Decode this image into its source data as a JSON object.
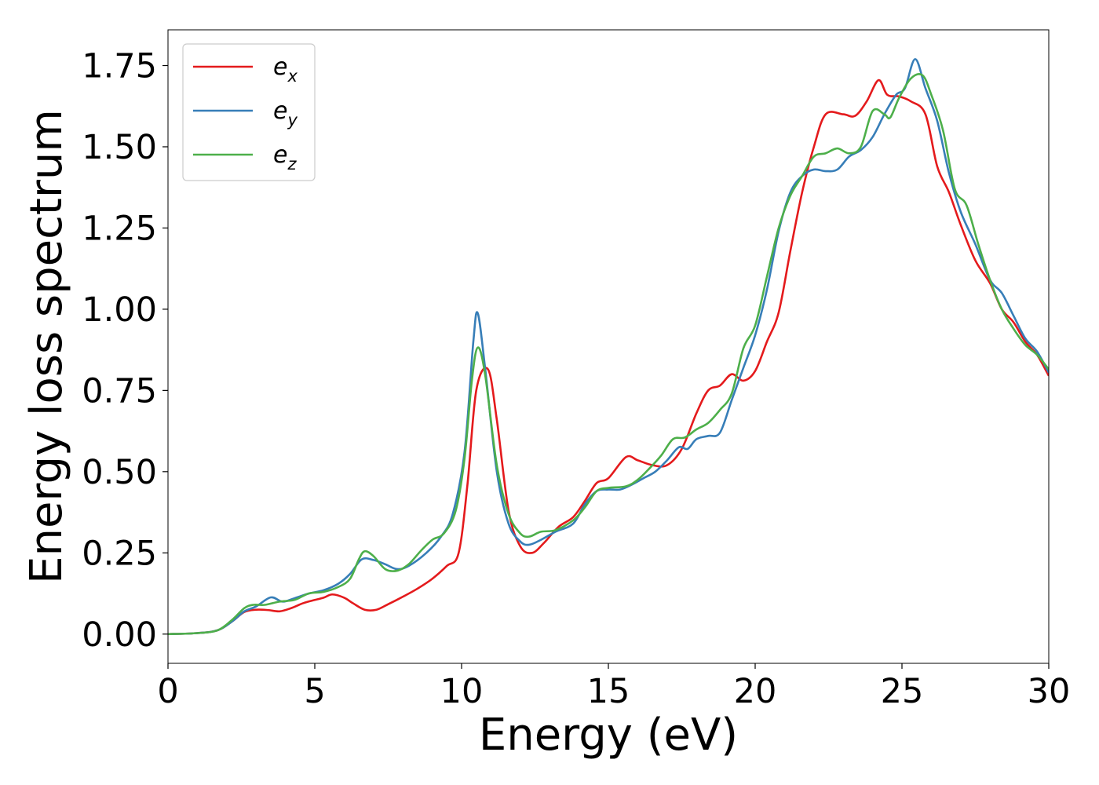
{
  "chart_data": {
    "type": "line",
    "title": "",
    "xlabel": "Energy (eV)",
    "ylabel": "Energy loss spectrum",
    "xlim": [
      0,
      30
    ],
    "ylim": [
      -0.09,
      1.86
    ],
    "xticks": [
      0,
      5,
      10,
      15,
      20,
      25,
      30
    ],
    "xtick_labels": [
      "0",
      "5",
      "10",
      "15",
      "20",
      "25",
      "30"
    ],
    "yticks": [
      0.0,
      0.25,
      0.5,
      0.75,
      1.0,
      1.25,
      1.5,
      1.75
    ],
    "ytick_labels": [
      "0.00",
      "0.25",
      "0.50",
      "0.75",
      "1.00",
      "1.25",
      "1.50",
      "1.75"
    ],
    "grid": false,
    "legend_position": "top-left",
    "series": [
      {
        "name": "e_x",
        "legend_base": "e",
        "legend_sub": "x",
        "color": "#e41a1c",
        "points": [
          [
            0,
            0
          ],
          [
            1,
            0.003
          ],
          [
            1.7,
            0.012
          ],
          [
            2.2,
            0.04
          ],
          [
            2.6,
            0.068
          ],
          [
            3.0,
            0.075
          ],
          [
            3.4,
            0.074
          ],
          [
            3.8,
            0.07
          ],
          [
            4.2,
            0.08
          ],
          [
            4.6,
            0.095
          ],
          [
            5.0,
            0.105
          ],
          [
            5.3,
            0.112
          ],
          [
            5.6,
            0.122
          ],
          [
            6.0,
            0.112
          ],
          [
            6.3,
            0.095
          ],
          [
            6.7,
            0.075
          ],
          [
            7.1,
            0.075
          ],
          [
            7.5,
            0.092
          ],
          [
            8.0,
            0.115
          ],
          [
            8.5,
            0.14
          ],
          [
            9.0,
            0.17
          ],
          [
            9.5,
            0.21
          ],
          [
            9.9,
            0.25
          ],
          [
            10.2,
            0.46
          ],
          [
            10.5,
            0.75
          ],
          [
            10.9,
            0.815
          ],
          [
            11.2,
            0.66
          ],
          [
            11.6,
            0.38
          ],
          [
            12.0,
            0.27
          ],
          [
            12.4,
            0.25
          ],
          [
            12.8,
            0.28
          ],
          [
            13.3,
            0.33
          ],
          [
            13.8,
            0.36
          ],
          [
            14.2,
            0.41
          ],
          [
            14.6,
            0.465
          ],
          [
            15.0,
            0.48
          ],
          [
            15.6,
            0.545
          ],
          [
            16.0,
            0.535
          ],
          [
            16.5,
            0.52
          ],
          [
            17.0,
            0.52
          ],
          [
            17.5,
            0.57
          ],
          [
            18.0,
            0.68
          ],
          [
            18.4,
            0.75
          ],
          [
            18.8,
            0.765
          ],
          [
            19.2,
            0.8
          ],
          [
            19.6,
            0.78
          ],
          [
            20.0,
            0.81
          ],
          [
            20.4,
            0.9
          ],
          [
            20.8,
            0.99
          ],
          [
            21.2,
            1.18
          ],
          [
            21.6,
            1.36
          ],
          [
            22.0,
            1.5
          ],
          [
            22.4,
            1.6
          ],
          [
            23.0,
            1.6
          ],
          [
            23.4,
            1.595
          ],
          [
            23.8,
            1.64
          ],
          [
            24.2,
            1.705
          ],
          [
            24.5,
            1.66
          ],
          [
            24.9,
            1.655
          ],
          [
            25.3,
            1.64
          ],
          [
            25.8,
            1.6
          ],
          [
            26.2,
            1.44
          ],
          [
            26.6,
            1.36
          ],
          [
            27.0,
            1.26
          ],
          [
            27.5,
            1.15
          ],
          [
            28.0,
            1.08
          ],
          [
            28.4,
            1.0
          ],
          [
            28.8,
            0.96
          ],
          [
            29.2,
            0.9
          ],
          [
            29.6,
            0.86
          ],
          [
            30.0,
            0.795
          ]
        ]
      },
      {
        "name": "e_y",
        "legend_base": "e",
        "legend_sub": "y",
        "color": "#377eb8",
        "points": [
          [
            0,
            0
          ],
          [
            1,
            0.003
          ],
          [
            1.7,
            0.012
          ],
          [
            2.2,
            0.04
          ],
          [
            2.6,
            0.07
          ],
          [
            3.0,
            0.085
          ],
          [
            3.5,
            0.113
          ],
          [
            3.9,
            0.1
          ],
          [
            4.3,
            0.11
          ],
          [
            4.8,
            0.125
          ],
          [
            5.3,
            0.135
          ],
          [
            5.8,
            0.155
          ],
          [
            6.2,
            0.185
          ],
          [
            6.6,
            0.23
          ],
          [
            7.0,
            0.228
          ],
          [
            7.4,
            0.215
          ],
          [
            7.8,
            0.2
          ],
          [
            8.2,
            0.21
          ],
          [
            8.8,
            0.25
          ],
          [
            9.3,
            0.3
          ],
          [
            9.7,
            0.37
          ],
          [
            10.1,
            0.56
          ],
          [
            10.4,
            0.9
          ],
          [
            10.55,
            0.988
          ],
          [
            10.8,
            0.82
          ],
          [
            11.2,
            0.5
          ],
          [
            11.6,
            0.34
          ],
          [
            12.0,
            0.285
          ],
          [
            12.3,
            0.275
          ],
          [
            12.7,
            0.29
          ],
          [
            13.2,
            0.315
          ],
          [
            13.8,
            0.34
          ],
          [
            14.2,
            0.4
          ],
          [
            14.6,
            0.44
          ],
          [
            15.0,
            0.445
          ],
          [
            15.4,
            0.445
          ],
          [
            15.8,
            0.46
          ],
          [
            16.2,
            0.48
          ],
          [
            16.6,
            0.5
          ],
          [
            17.0,
            0.535
          ],
          [
            17.4,
            0.575
          ],
          [
            17.7,
            0.57
          ],
          [
            18.0,
            0.6
          ],
          [
            18.4,
            0.61
          ],
          [
            18.8,
            0.62
          ],
          [
            19.2,
            0.72
          ],
          [
            19.6,
            0.82
          ],
          [
            20.0,
            0.92
          ],
          [
            20.4,
            1.06
          ],
          [
            20.8,
            1.24
          ],
          [
            21.2,
            1.36
          ],
          [
            21.6,
            1.41
          ],
          [
            22.0,
            1.43
          ],
          [
            22.4,
            1.425
          ],
          [
            22.8,
            1.43
          ],
          [
            23.2,
            1.47
          ],
          [
            23.6,
            1.49
          ],
          [
            24.0,
            1.53
          ],
          [
            24.4,
            1.6
          ],
          [
            24.8,
            1.66
          ],
          [
            25.1,
            1.68
          ],
          [
            25.45,
            1.77
          ],
          [
            25.8,
            1.68
          ],
          [
            26.2,
            1.58
          ],
          [
            26.6,
            1.42
          ],
          [
            27.0,
            1.3
          ],
          [
            27.5,
            1.2
          ],
          [
            28.0,
            1.09
          ],
          [
            28.4,
            1.05
          ],
          [
            28.8,
            0.98
          ],
          [
            29.2,
            0.91
          ],
          [
            29.6,
            0.87
          ],
          [
            30.0,
            0.805
          ]
        ]
      },
      {
        "name": "e_z",
        "legend_base": "e",
        "legend_sub": "z",
        "color": "#4daf4a",
        "points": [
          [
            0,
            0
          ],
          [
            1,
            0.003
          ],
          [
            1.7,
            0.012
          ],
          [
            2.2,
            0.045
          ],
          [
            2.6,
            0.08
          ],
          [
            2.9,
            0.09
          ],
          [
            3.3,
            0.09
          ],
          [
            3.8,
            0.1
          ],
          [
            4.3,
            0.105
          ],
          [
            4.8,
            0.125
          ],
          [
            5.3,
            0.13
          ],
          [
            5.8,
            0.145
          ],
          [
            6.2,
            0.17
          ],
          [
            6.5,
            0.23
          ],
          [
            6.7,
            0.255
          ],
          [
            7.0,
            0.24
          ],
          [
            7.4,
            0.2
          ],
          [
            7.8,
            0.195
          ],
          [
            8.2,
            0.215
          ],
          [
            8.6,
            0.255
          ],
          [
            9.0,
            0.29
          ],
          [
            9.4,
            0.31
          ],
          [
            9.8,
            0.38
          ],
          [
            10.1,
            0.54
          ],
          [
            10.35,
            0.78
          ],
          [
            10.55,
            0.882
          ],
          [
            10.8,
            0.8
          ],
          [
            11.2,
            0.52
          ],
          [
            11.6,
            0.37
          ],
          [
            12.0,
            0.31
          ],
          [
            12.3,
            0.3
          ],
          [
            12.7,
            0.315
          ],
          [
            13.2,
            0.32
          ],
          [
            13.8,
            0.35
          ],
          [
            14.2,
            0.39
          ],
          [
            14.6,
            0.44
          ],
          [
            15.0,
            0.45
          ],
          [
            15.6,
            0.455
          ],
          [
            16.0,
            0.475
          ],
          [
            16.4,
            0.51
          ],
          [
            16.8,
            0.55
          ],
          [
            17.2,
            0.6
          ],
          [
            17.6,
            0.605
          ],
          [
            18.0,
            0.63
          ],
          [
            18.4,
            0.65
          ],
          [
            18.8,
            0.69
          ],
          [
            19.2,
            0.74
          ],
          [
            19.6,
            0.88
          ],
          [
            20.0,
            0.95
          ],
          [
            20.4,
            1.1
          ],
          [
            20.8,
            1.25
          ],
          [
            21.2,
            1.35
          ],
          [
            21.6,
            1.41
          ],
          [
            22.0,
            1.47
          ],
          [
            22.4,
            1.48
          ],
          [
            22.8,
            1.495
          ],
          [
            23.2,
            1.48
          ],
          [
            23.6,
            1.5
          ],
          [
            24.0,
            1.61
          ],
          [
            24.4,
            1.6
          ],
          [
            24.6,
            1.59
          ],
          [
            24.9,
            1.65
          ],
          [
            25.3,
            1.71
          ],
          [
            25.7,
            1.72
          ],
          [
            26.0,
            1.66
          ],
          [
            26.4,
            1.55
          ],
          [
            26.8,
            1.37
          ],
          [
            27.2,
            1.32
          ],
          [
            27.6,
            1.2
          ],
          [
            28.0,
            1.09
          ],
          [
            28.4,
            1.0
          ],
          [
            28.8,
            0.94
          ],
          [
            29.2,
            0.89
          ],
          [
            29.6,
            0.86
          ],
          [
            30.0,
            0.815
          ]
        ]
      }
    ]
  }
}
